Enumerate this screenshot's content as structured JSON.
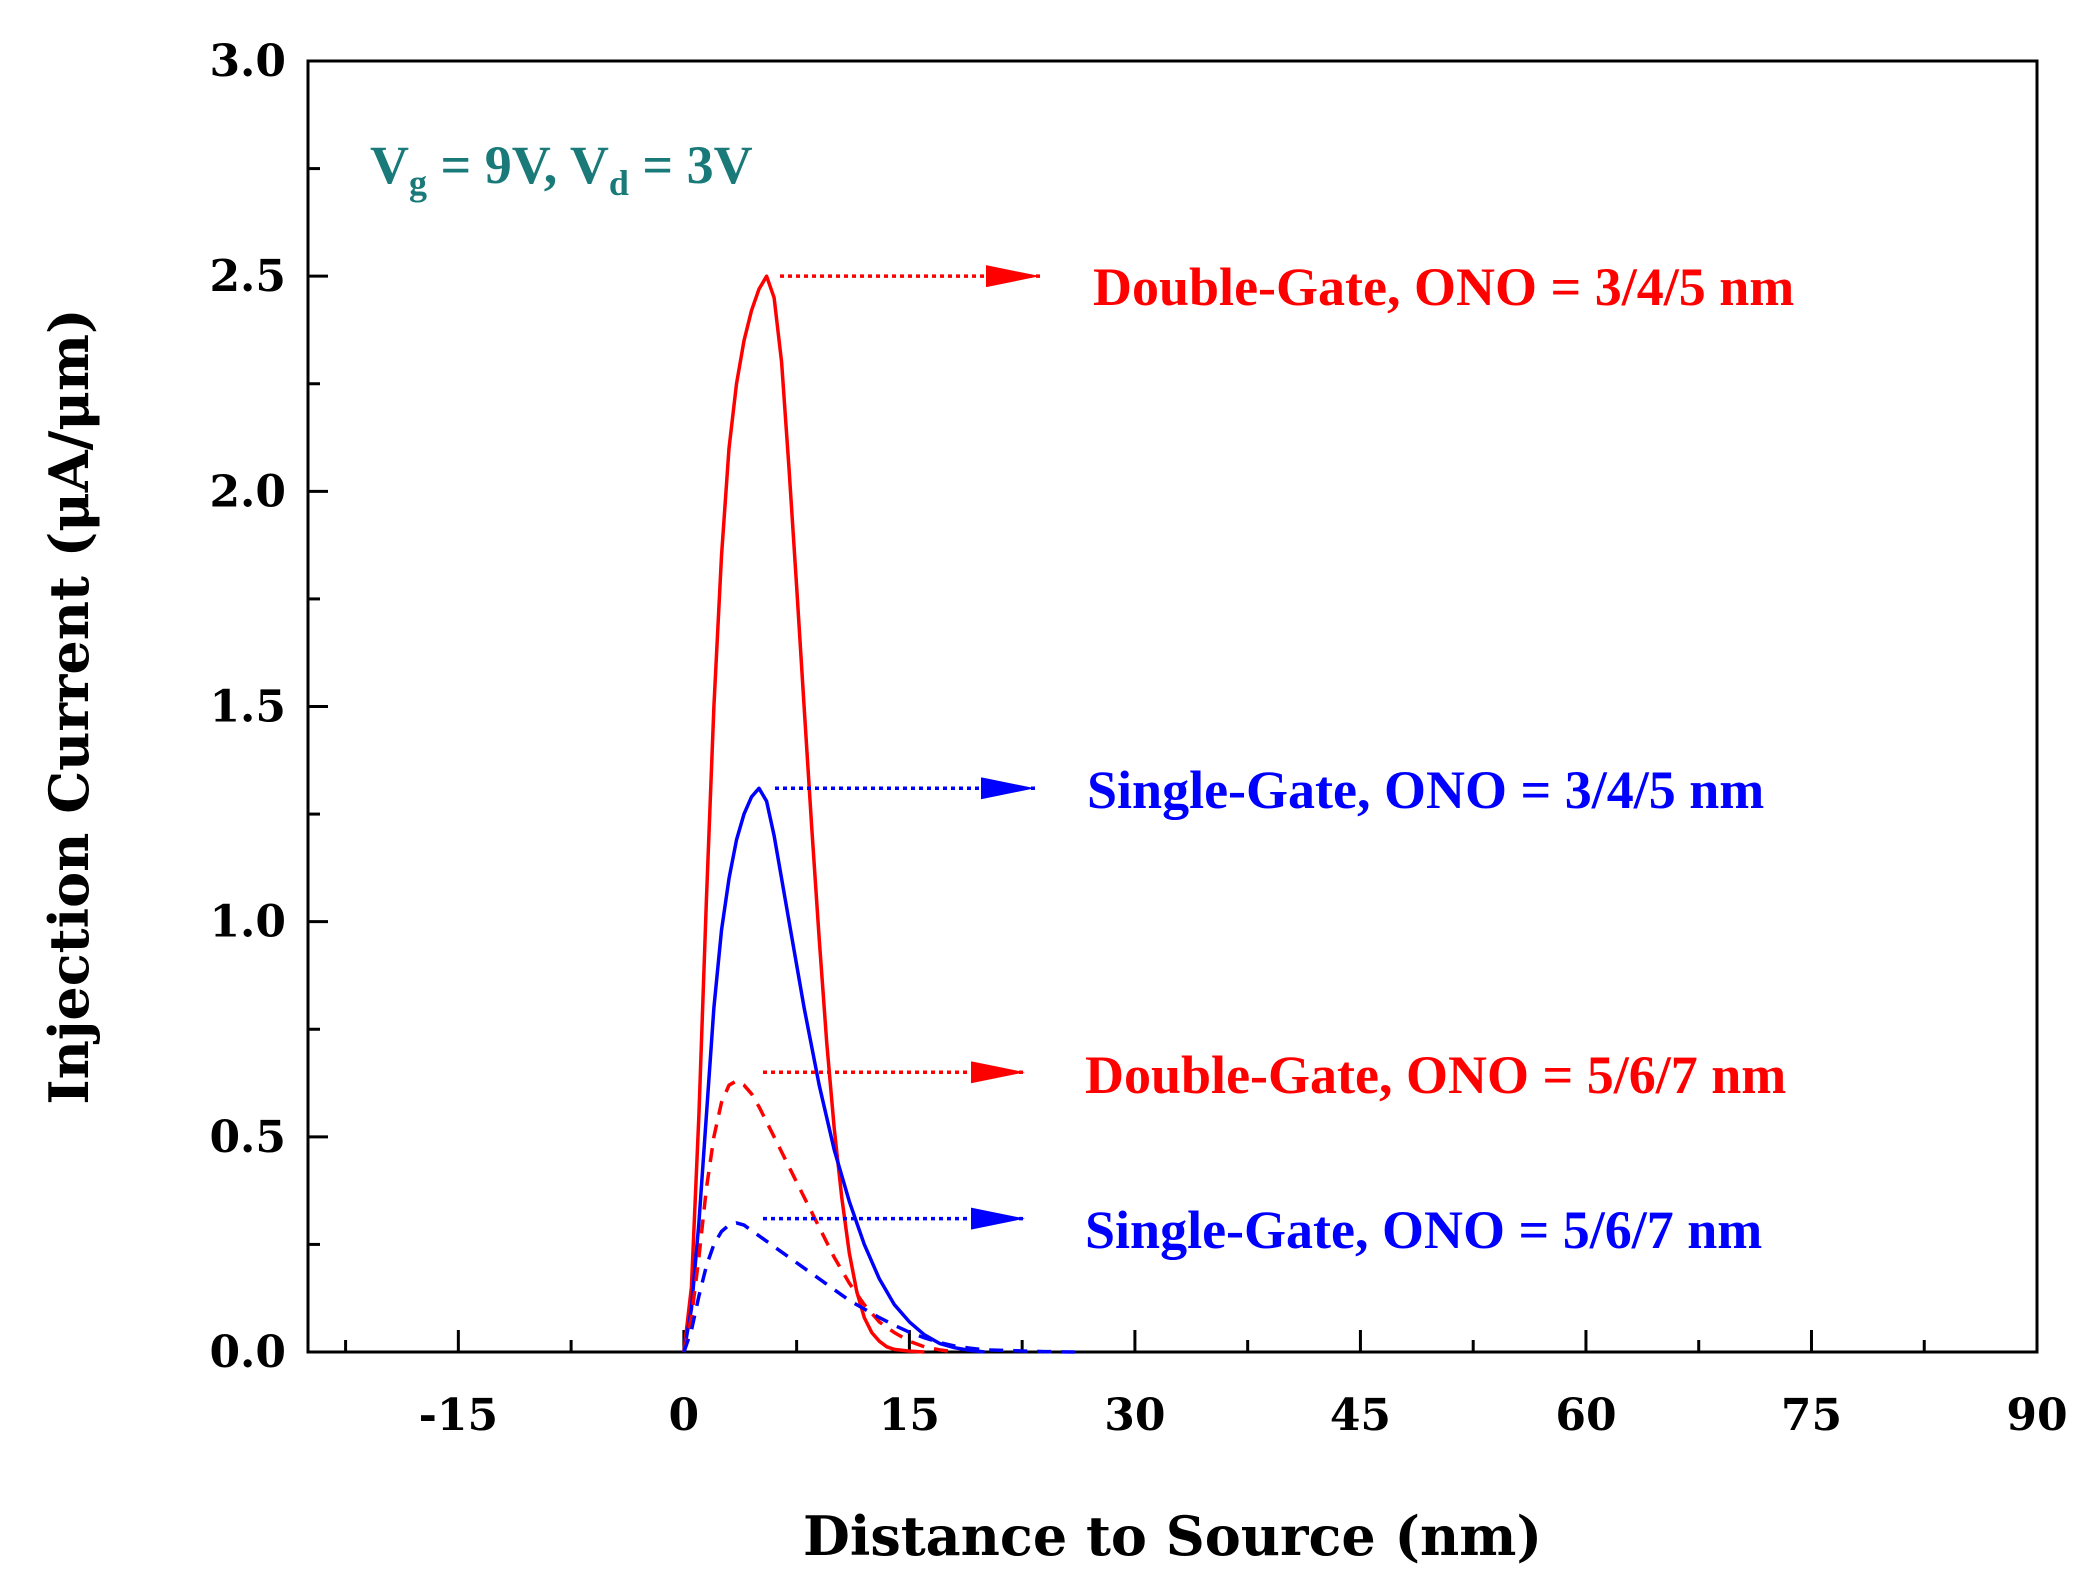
{
  "chart_data": {
    "type": "line",
    "title": "",
    "xlabel": "Distance to Source (nm)",
    "ylabel": "Injection Current (μA/μm)",
    "xlim": [
      -25,
      90
    ],
    "ylim": [
      0,
      3.0
    ],
    "x_ticks": [
      -15,
      0,
      15,
      30,
      45,
      60,
      75,
      90
    ],
    "x_tick_labels": [
      "-15",
      "0",
      "15",
      "30",
      "45",
      "60",
      "75",
      "90"
    ],
    "y_ticks": [
      0.0,
      0.5,
      1.0,
      1.5,
      2.0,
      2.5,
      3.0
    ],
    "y_tick_labels": [
      "0.0",
      "0.5",
      "1.0",
      "1.5",
      "2.0",
      "2.5",
      "3.0"
    ],
    "annotation": {
      "v_symbol_1": "V",
      "sub_1": "g",
      "eq_1": " = 9V, ",
      "v_symbol_2": "V",
      "sub_2": "d",
      "eq_2": " = 3V",
      "color": "#1a7a7a"
    },
    "series": [
      {
        "name": "Double-Gate, ONO = 3/4/5 nm",
        "color": "#ff0000",
        "dash": "solid",
        "label_anchor": [
          5.5,
          2.5
        ],
        "x": [
          0,
          0.5,
          1,
          1.5,
          2,
          2.5,
          3,
          3.5,
          4,
          4.5,
          5,
          5.5,
          6,
          6.5,
          7,
          7.5,
          8,
          8.5,
          9,
          9.5,
          10,
          10.5,
          11,
          11.5,
          12,
          12.5,
          13,
          13.5,
          14,
          15,
          16
        ],
        "values": [
          0.0,
          0.15,
          0.55,
          1.05,
          1.5,
          1.85,
          2.1,
          2.25,
          2.35,
          2.42,
          2.47,
          2.5,
          2.45,
          2.3,
          2.05,
          1.78,
          1.5,
          1.22,
          0.96,
          0.72,
          0.52,
          0.36,
          0.23,
          0.14,
          0.08,
          0.045,
          0.025,
          0.012,
          0.006,
          0.002,
          0.0
        ]
      },
      {
        "name": "Single-Gate, ONO = 3/4/5 nm",
        "color": "#0000ff",
        "dash": "solid",
        "label_anchor": [
          5.0,
          1.31
        ],
        "x": [
          0,
          0.5,
          1,
          1.5,
          2,
          2.5,
          3,
          3.5,
          4,
          4.5,
          5,
          5.5,
          6,
          6.5,
          7,
          8,
          9,
          10,
          11,
          12,
          13,
          14,
          15,
          16,
          17,
          18,
          19,
          20
        ],
        "values": [
          0.0,
          0.1,
          0.3,
          0.55,
          0.8,
          0.98,
          1.1,
          1.19,
          1.25,
          1.29,
          1.31,
          1.28,
          1.2,
          1.1,
          1.0,
          0.8,
          0.62,
          0.47,
          0.35,
          0.25,
          0.17,
          0.11,
          0.07,
          0.04,
          0.02,
          0.01,
          0.004,
          0.0
        ]
      },
      {
        "name": "Double-Gate, ONO = 5/6/7 nm",
        "color": "#ff0000",
        "dash": "dashed",
        "label_anchor": [
          5.0,
          0.65
        ],
        "x": [
          0,
          0.5,
          1,
          1.5,
          2,
          2.5,
          3,
          3.5,
          4,
          4.5,
          5,
          6,
          7,
          8,
          9,
          10,
          11,
          12,
          13,
          14,
          15,
          16,
          17,
          18
        ],
        "values": [
          0.0,
          0.08,
          0.22,
          0.38,
          0.5,
          0.58,
          0.62,
          0.63,
          0.62,
          0.6,
          0.57,
          0.5,
          0.43,
          0.36,
          0.29,
          0.22,
          0.16,
          0.11,
          0.07,
          0.045,
          0.025,
          0.012,
          0.005,
          0.0
        ]
      },
      {
        "name": "Single-Gate, ONO = 5/6/7 nm",
        "color": "#0000ff",
        "dash": "dashed",
        "label_anchor": [
          5.0,
          0.31
        ],
        "x": [
          0,
          0.5,
          1,
          1.5,
          2,
          2.5,
          3,
          3.5,
          4,
          5,
          6,
          7,
          8,
          9,
          10,
          11,
          12,
          13,
          14,
          15,
          16,
          17,
          18,
          19,
          20,
          22,
          24,
          26
        ],
        "values": [
          0.0,
          0.05,
          0.13,
          0.2,
          0.25,
          0.28,
          0.295,
          0.3,
          0.295,
          0.27,
          0.245,
          0.22,
          0.195,
          0.17,
          0.145,
          0.12,
          0.1,
          0.08,
          0.062,
          0.046,
          0.033,
          0.022,
          0.014,
          0.009,
          0.005,
          0.003,
          0.001,
          0.0
        ]
      }
    ]
  }
}
